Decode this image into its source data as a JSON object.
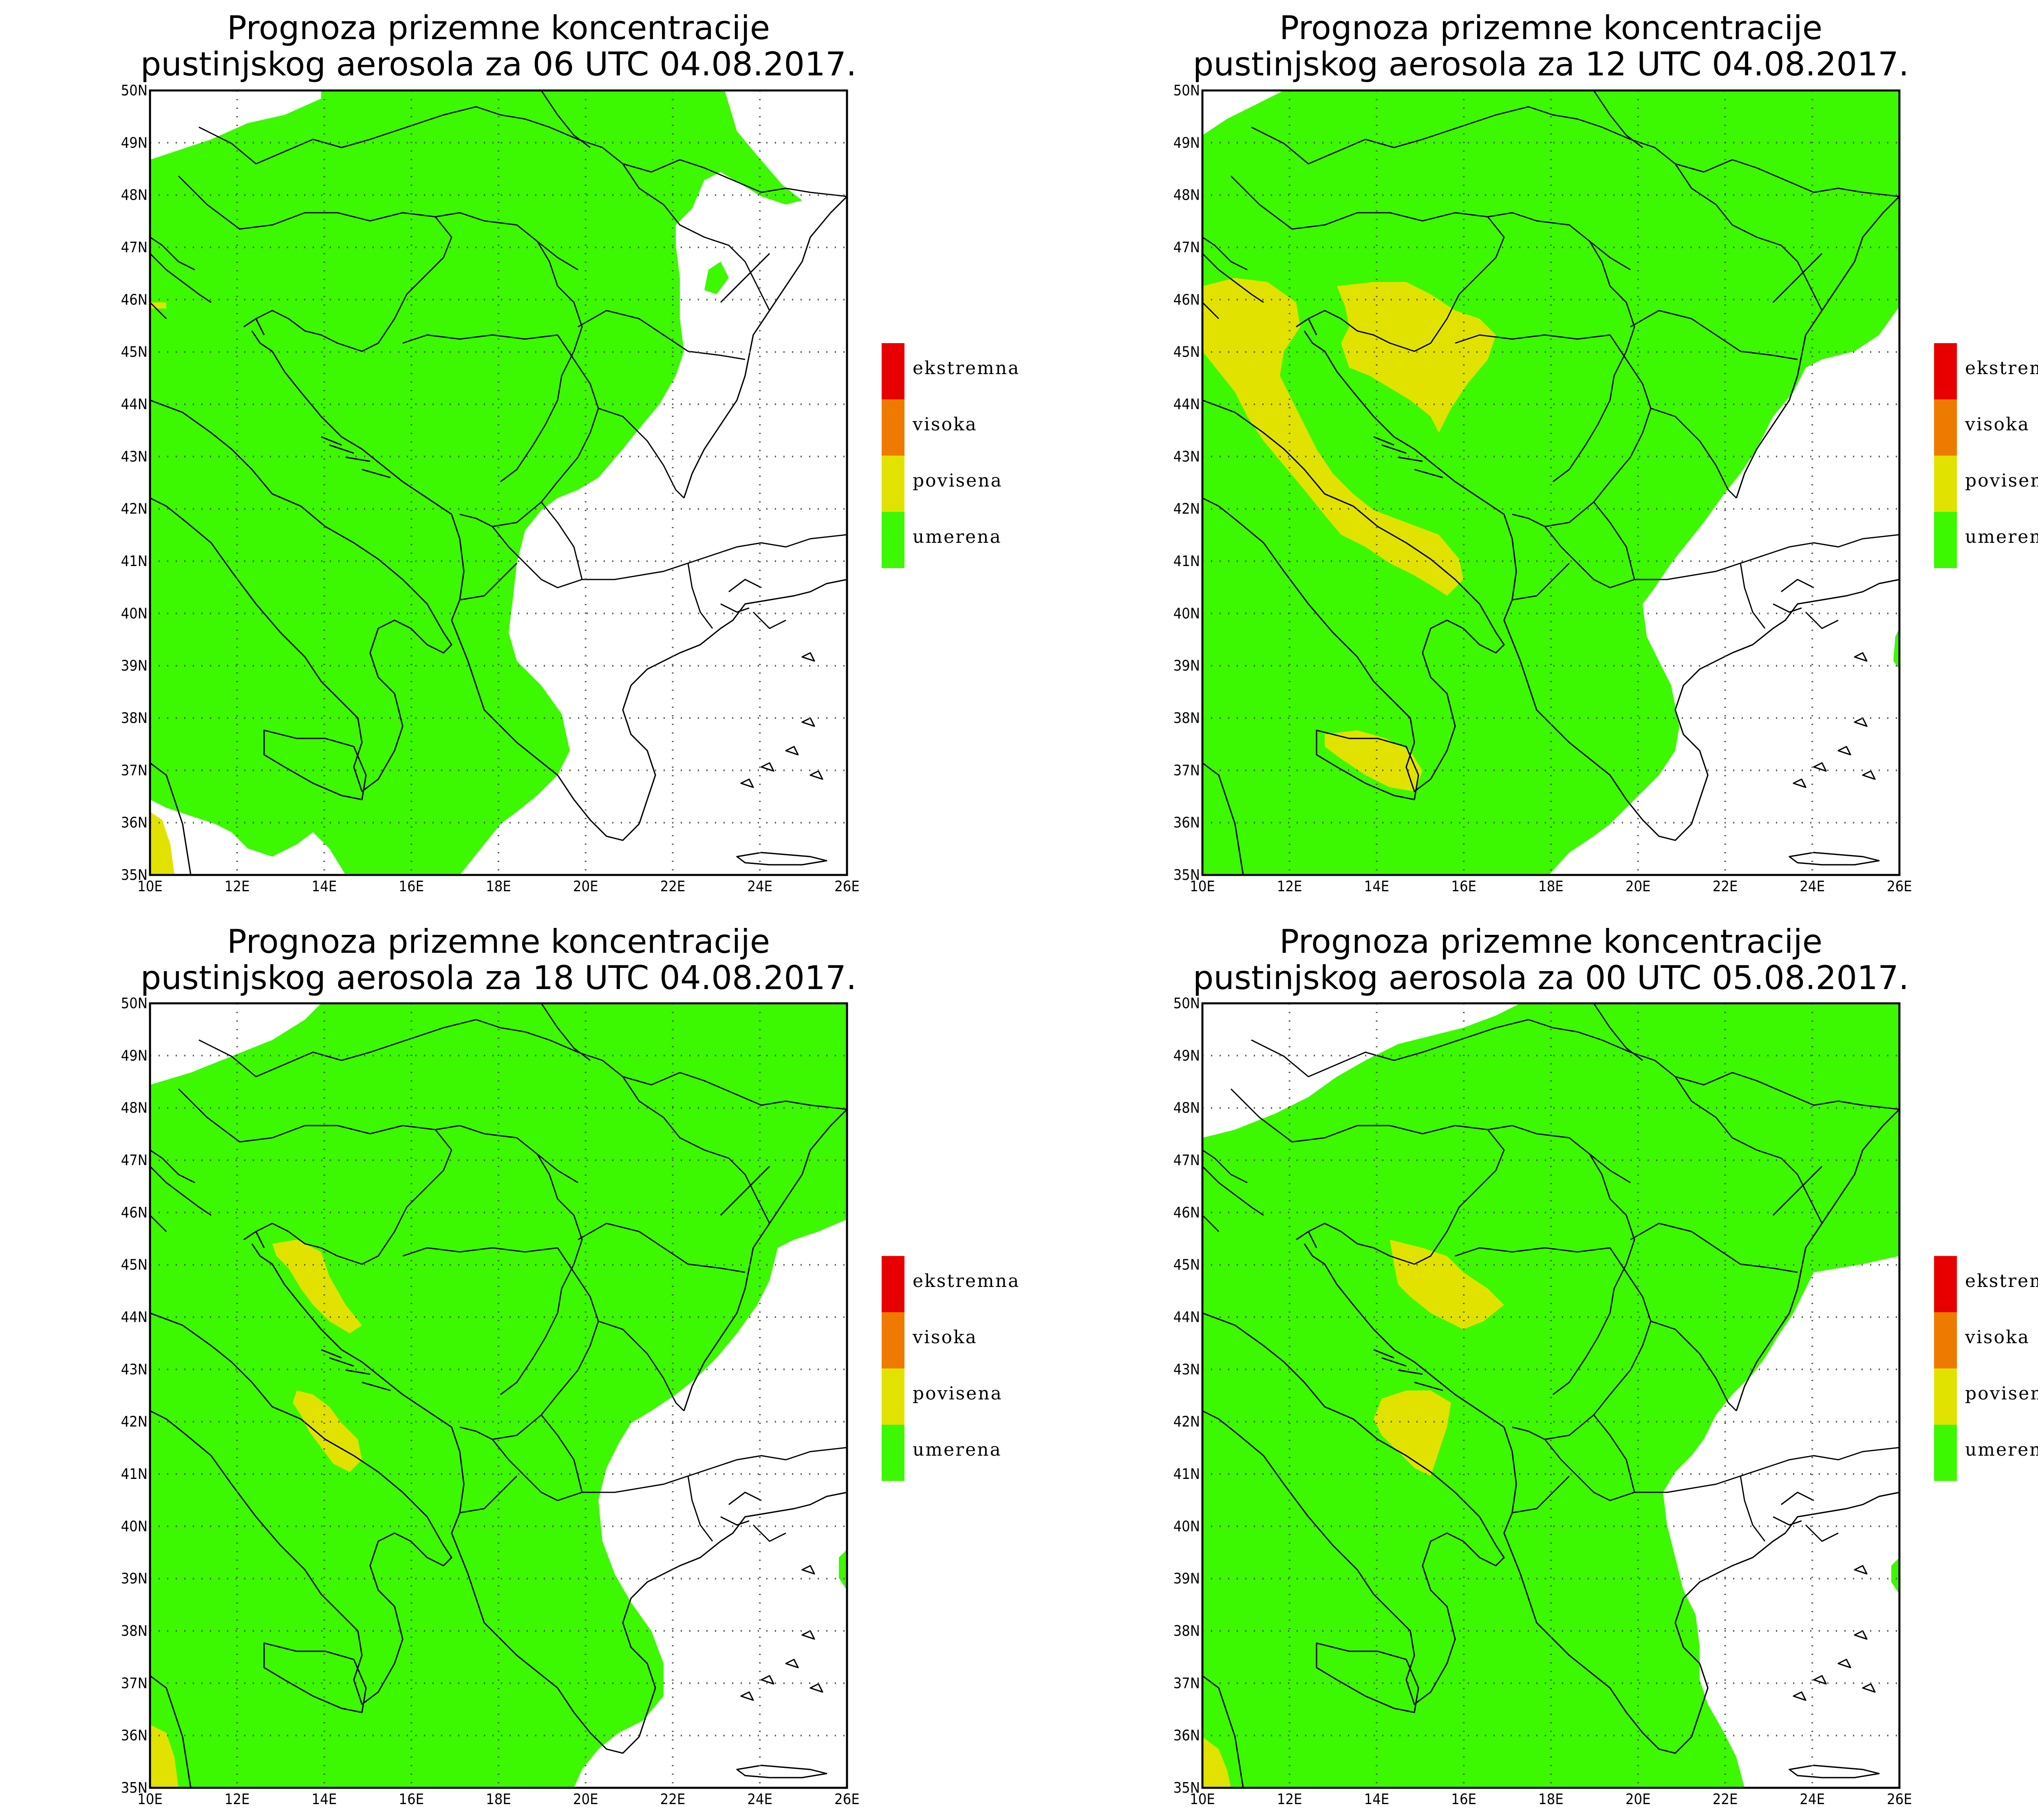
{
  "panels": [
    {
      "id": "p1",
      "title_line1": "Prognoza prizemne koncentracije",
      "title_line2": "pustinjskog aerosola za 06 UTC 04.08.2017."
    },
    {
      "id": "p2",
      "title_line1": "Prognoza prizemne koncentracije",
      "title_line2": "pustinjskog aerosola za 12 UTC 04.08.2017."
    },
    {
      "id": "p3",
      "title_line1": "Prognoza prizemne koncentracije",
      "title_line2": "pustinjskog aerosola za 18 UTC 04.08.2017."
    },
    {
      "id": "p4",
      "title_line1": "Prognoza prizemne koncentracije",
      "title_line2": "pustinjskog aerosola za 00 UTC 05.08.2017."
    }
  ],
  "x_ticks": [
    "10E",
    "12E",
    "14E",
    "16E",
    "18E",
    "20E",
    "22E",
    "24E",
    "26E"
  ],
  "y_ticks": [
    "35N",
    "36N",
    "37N",
    "38N",
    "39N",
    "40N",
    "41N",
    "42N",
    "43N",
    "44N",
    "45N",
    "46N",
    "47N",
    "48N",
    "49N",
    "50N"
  ],
  "legend": [
    {
      "label": "ekstremna",
      "color": "#e80000"
    },
    {
      "label": "visoka",
      "color": "#ee7a00"
    },
    {
      "label": "povisena",
      "color": "#e2e200"
    },
    {
      "label": "umerena",
      "color": "#3cf800"
    }
  ],
  "map_extent": {
    "lon_min": 10,
    "lon_max": 26,
    "lat_min": 35,
    "lat_max": 50
  }
}
